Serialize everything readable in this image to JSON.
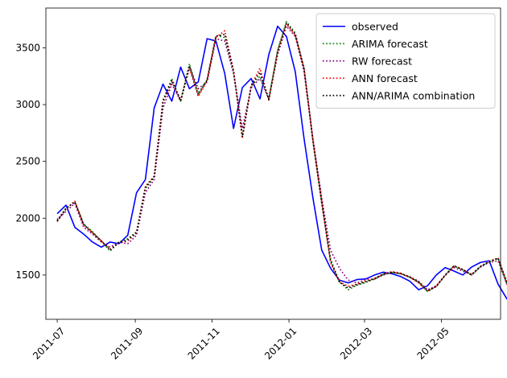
{
  "chart_data": {
    "type": "line",
    "title": "",
    "xlabel": "",
    "ylabel": "",
    "xlim": [
      "2011-06-22",
      "2012-06-17"
    ],
    "ylim": [
      1110,
      3850
    ],
    "x_ticks": [
      {
        "date": "2011-07-01",
        "label": "2011-07"
      },
      {
        "date": "2011-09-01",
        "label": "2011-09"
      },
      {
        "date": "2011-11-01",
        "label": "2011-11"
      },
      {
        "date": "2012-01-01",
        "label": "2012-01"
      },
      {
        "date": "2012-03-01",
        "label": "2012-03"
      },
      {
        "date": "2012-05-01",
        "label": "2012-05"
      }
    ],
    "y_ticks": [
      1500,
      2000,
      2500,
      3000,
      3500
    ],
    "grid": false,
    "legend_position": "top-right",
    "series": [
      {
        "name": "observed",
        "color": "#0000ff",
        "style": "solid",
        "points": [
          [
            "2011-07-01",
            2040
          ],
          [
            "2011-07-08",
            2115
          ],
          [
            "2011-07-15",
            1920
          ],
          [
            "2011-07-22",
            1860
          ],
          [
            "2011-07-29",
            1790
          ],
          [
            "2011-08-05",
            1745
          ],
          [
            "2011-08-12",
            1790
          ],
          [
            "2011-08-19",
            1775
          ],
          [
            "2011-08-26",
            1850
          ],
          [
            "2011-09-02",
            2225
          ],
          [
            "2011-09-09",
            2340
          ],
          [
            "2011-09-16",
            2970
          ],
          [
            "2011-09-23",
            3180
          ],
          [
            "2011-09-30",
            3030
          ],
          [
            "2011-10-07",
            3330
          ],
          [
            "2011-10-14",
            3140
          ],
          [
            "2011-10-21",
            3200
          ],
          [
            "2011-10-28",
            3580
          ],
          [
            "2011-11-04",
            3560
          ],
          [
            "2011-11-11",
            3275
          ],
          [
            "2011-11-18",
            2790
          ],
          [
            "2011-11-25",
            3150
          ],
          [
            "2011-12-02",
            3230
          ],
          [
            "2011-12-09",
            3050
          ],
          [
            "2011-12-16",
            3440
          ],
          [
            "2011-12-23",
            3690
          ],
          [
            "2011-12-30",
            3600
          ],
          [
            "2012-01-06",
            3290
          ],
          [
            "2012-01-13",
            2700
          ],
          [
            "2012-01-20",
            2180
          ],
          [
            "2012-01-27",
            1720
          ],
          [
            "2012-02-03",
            1560
          ],
          [
            "2012-02-10",
            1455
          ],
          [
            "2012-02-17",
            1430
          ],
          [
            "2012-02-24",
            1460
          ],
          [
            "2012-03-02",
            1465
          ],
          [
            "2012-03-09",
            1500
          ],
          [
            "2012-03-16",
            1525
          ],
          [
            "2012-03-23",
            1510
          ],
          [
            "2012-03-30",
            1485
          ],
          [
            "2012-04-06",
            1445
          ],
          [
            "2012-04-13",
            1370
          ],
          [
            "2012-04-20",
            1405
          ],
          [
            "2012-04-27",
            1500
          ],
          [
            "2012-05-04",
            1565
          ],
          [
            "2012-05-11",
            1535
          ],
          [
            "2012-05-18",
            1500
          ],
          [
            "2012-05-25",
            1570
          ],
          [
            "2012-06-01",
            1610
          ],
          [
            "2012-06-08",
            1625
          ],
          [
            "2012-06-15",
            1420
          ],
          [
            "2012-06-22",
            1290
          ],
          [
            "2012-06-29",
            1220
          ]
        ]
      },
      {
        "name": "ARIMA forecast",
        "color": "#008000",
        "style": "dotted",
        "points": [
          [
            "2011-07-01",
            1980
          ],
          [
            "2011-07-08",
            2090
          ],
          [
            "2011-07-15",
            2140
          ],
          [
            "2011-07-22",
            1950
          ],
          [
            "2011-07-29",
            1880
          ],
          [
            "2011-08-05",
            1800
          ],
          [
            "2011-08-12",
            1710
          ],
          [
            "2011-08-19",
            1790
          ],
          [
            "2011-08-26",
            1820
          ],
          [
            "2011-09-02",
            1880
          ],
          [
            "2011-09-09",
            2260
          ],
          [
            "2011-09-16",
            2360
          ],
          [
            "2011-09-23",
            3040
          ],
          [
            "2011-09-30",
            3230
          ],
          [
            "2011-10-07",
            3030
          ],
          [
            "2011-10-14",
            3360
          ],
          [
            "2011-10-21",
            3100
          ],
          [
            "2011-10-28",
            3220
          ],
          [
            "2011-11-04",
            3610
          ],
          [
            "2011-11-11",
            3590
          ],
          [
            "2011-11-18",
            3290
          ],
          [
            "2011-11-25",
            2730
          ],
          [
            "2011-12-02",
            3160
          ],
          [
            "2011-12-09",
            3250
          ],
          [
            "2011-12-16",
            3050
          ],
          [
            "2011-12-23",
            3480
          ],
          [
            "2011-12-30",
            3730
          ],
          [
            "2012-01-06",
            3630
          ],
          [
            "2012-01-13",
            3310
          ],
          [
            "2012-01-20",
            2680
          ],
          [
            "2012-01-27",
            2130
          ],
          [
            "2012-02-03",
            1640
          ],
          [
            "2012-02-10",
            1440
          ],
          [
            "2012-02-17",
            1370
          ],
          [
            "2012-02-24",
            1410
          ],
          [
            "2012-03-02",
            1435
          ],
          [
            "2012-03-09",
            1465
          ],
          [
            "2012-03-16",
            1505
          ],
          [
            "2012-03-23",
            1520
          ],
          [
            "2012-03-30",
            1510
          ],
          [
            "2012-04-06",
            1480
          ],
          [
            "2012-04-13",
            1440
          ],
          [
            "2012-04-20",
            1355
          ],
          [
            "2012-04-27",
            1400
          ],
          [
            "2012-05-04",
            1500
          ],
          [
            "2012-05-11",
            1580
          ],
          [
            "2012-05-18",
            1545
          ],
          [
            "2012-05-25",
            1500
          ],
          [
            "2012-06-01",
            1575
          ],
          [
            "2012-06-08",
            1615
          ],
          [
            "2012-06-15",
            1645
          ],
          [
            "2012-06-22",
            1420
          ],
          [
            "2012-06-29",
            1280
          ]
        ]
      },
      {
        "name": "RW forecast",
        "color": "#800080",
        "style": "dotted",
        "points": [
          [
            "2011-07-01",
            1990
          ],
          [
            "2011-07-08",
            2060
          ],
          [
            "2011-07-15",
            2130
          ],
          [
            "2011-07-22",
            1920
          ],
          [
            "2011-07-29",
            1860
          ],
          [
            "2011-08-05",
            1790
          ],
          [
            "2011-08-12",
            1745
          ],
          [
            "2011-08-19",
            1790
          ],
          [
            "2011-08-26",
            1775
          ],
          [
            "2011-09-02",
            1850
          ],
          [
            "2011-09-09",
            2225
          ],
          [
            "2011-09-16",
            2340
          ],
          [
            "2011-09-23",
            2970
          ],
          [
            "2011-09-30",
            3180
          ],
          [
            "2011-10-07",
            3030
          ],
          [
            "2011-10-14",
            3330
          ],
          [
            "2011-10-21",
            3140
          ],
          [
            "2011-10-28",
            3200
          ],
          [
            "2011-11-04",
            3580
          ],
          [
            "2011-11-11",
            3560
          ],
          [
            "2011-11-18",
            3275
          ],
          [
            "2011-11-25",
            2790
          ],
          [
            "2011-12-02",
            3150
          ],
          [
            "2011-12-09",
            3230
          ],
          [
            "2011-12-16",
            3050
          ],
          [
            "2011-12-23",
            3440
          ],
          [
            "2011-12-30",
            3690
          ],
          [
            "2012-01-06",
            3600
          ],
          [
            "2012-01-13",
            3290
          ],
          [
            "2012-01-20",
            2700
          ],
          [
            "2012-01-27",
            2180
          ],
          [
            "2012-02-03",
            1720
          ],
          [
            "2012-02-10",
            1560
          ],
          [
            "2012-02-17",
            1455
          ],
          [
            "2012-02-24",
            1430
          ],
          [
            "2012-03-02",
            1460
          ],
          [
            "2012-03-09",
            1465
          ],
          [
            "2012-03-16",
            1500
          ],
          [
            "2012-03-23",
            1525
          ],
          [
            "2012-03-30",
            1510
          ],
          [
            "2012-04-06",
            1485
          ],
          [
            "2012-04-13",
            1445
          ],
          [
            "2012-04-20",
            1370
          ],
          [
            "2012-04-27",
            1405
          ],
          [
            "2012-05-04",
            1500
          ],
          [
            "2012-05-11",
            1565
          ],
          [
            "2012-05-18",
            1535
          ],
          [
            "2012-05-25",
            1500
          ],
          [
            "2012-06-01",
            1570
          ],
          [
            "2012-06-08",
            1610
          ],
          [
            "2012-06-15",
            1625
          ],
          [
            "2012-06-22",
            1420
          ],
          [
            "2012-06-29",
            1290
          ]
        ]
      },
      {
        "name": "ANN forecast",
        "color": "#ff0000",
        "style": "dotted",
        "points": [
          [
            "2011-07-01",
            1970
          ],
          [
            "2011-07-08",
            2080
          ],
          [
            "2011-07-15",
            2150
          ],
          [
            "2011-07-22",
            1940
          ],
          [
            "2011-07-29",
            1870
          ],
          [
            "2011-08-05",
            1800
          ],
          [
            "2011-08-12",
            1730
          ],
          [
            "2011-08-19",
            1780
          ],
          [
            "2011-08-26",
            1800
          ],
          [
            "2011-09-02",
            1870
          ],
          [
            "2011-09-09",
            2280
          ],
          [
            "2011-09-16",
            2370
          ],
          [
            "2011-09-23",
            3020
          ],
          [
            "2011-09-30",
            3200
          ],
          [
            "2011-10-07",
            3040
          ],
          [
            "2011-10-14",
            3320
          ],
          [
            "2011-10-21",
            3070
          ],
          [
            "2011-10-28",
            3210
          ],
          [
            "2011-11-04",
            3590
          ],
          [
            "2011-11-11",
            3650
          ],
          [
            "2011-11-18",
            3300
          ],
          [
            "2011-11-25",
            2700
          ],
          [
            "2011-12-02",
            3170
          ],
          [
            "2011-12-09",
            3320
          ],
          [
            "2011-12-16",
            3040
          ],
          [
            "2011-12-23",
            3460
          ],
          [
            "2011-12-30",
            3710
          ],
          [
            "2012-01-06",
            3610
          ],
          [
            "2012-01-13",
            3320
          ],
          [
            "2012-01-20",
            2690
          ],
          [
            "2012-01-27",
            2150
          ],
          [
            "2012-02-03",
            1610
          ],
          [
            "2012-02-10",
            1440
          ],
          [
            "2012-02-17",
            1400
          ],
          [
            "2012-02-24",
            1420
          ],
          [
            "2012-03-02",
            1450
          ],
          [
            "2012-03-09",
            1470
          ],
          [
            "2012-03-16",
            1510
          ],
          [
            "2012-03-23",
            1530
          ],
          [
            "2012-03-30",
            1515
          ],
          [
            "2012-04-06",
            1480
          ],
          [
            "2012-04-13",
            1430
          ],
          [
            "2012-04-20",
            1360
          ],
          [
            "2012-04-27",
            1400
          ],
          [
            "2012-05-04",
            1495
          ],
          [
            "2012-05-11",
            1580
          ],
          [
            "2012-05-18",
            1550
          ],
          [
            "2012-05-25",
            1505
          ],
          [
            "2012-06-01",
            1575
          ],
          [
            "2012-06-08",
            1620
          ],
          [
            "2012-06-15",
            1650
          ],
          [
            "2012-06-22",
            1440
          ],
          [
            "2012-06-29",
            1300
          ]
        ]
      },
      {
        "name": "ANN/ARIMA combination",
        "color": "#000000",
        "style": "dotted",
        "points": [
          [
            "2011-07-01",
            1975
          ],
          [
            "2011-07-08",
            2085
          ],
          [
            "2011-07-15",
            2145
          ],
          [
            "2011-07-22",
            1945
          ],
          [
            "2011-07-29",
            1875
          ],
          [
            "2011-08-05",
            1800
          ],
          [
            "2011-08-12",
            1720
          ],
          [
            "2011-08-19",
            1785
          ],
          [
            "2011-08-26",
            1810
          ],
          [
            "2011-09-02",
            1875
          ],
          [
            "2011-09-09",
            2270
          ],
          [
            "2011-09-16",
            2365
          ],
          [
            "2011-09-23",
            3030
          ],
          [
            "2011-09-30",
            3215
          ],
          [
            "2011-10-07",
            3035
          ],
          [
            "2011-10-14",
            3340
          ],
          [
            "2011-10-21",
            3085
          ],
          [
            "2011-10-28",
            3215
          ],
          [
            "2011-11-04",
            3600
          ],
          [
            "2011-11-11",
            3620
          ],
          [
            "2011-11-18",
            3295
          ],
          [
            "2011-11-25",
            2715
          ],
          [
            "2011-12-02",
            3165
          ],
          [
            "2011-12-09",
            3285
          ],
          [
            "2011-12-16",
            3045
          ],
          [
            "2011-12-23",
            3470
          ],
          [
            "2011-12-30",
            3720
          ],
          [
            "2012-01-06",
            3620
          ],
          [
            "2012-01-13",
            3315
          ],
          [
            "2012-01-20",
            2685
          ],
          [
            "2012-01-27",
            2140
          ],
          [
            "2012-02-03",
            1625
          ],
          [
            "2012-02-10",
            1440
          ],
          [
            "2012-02-17",
            1385
          ],
          [
            "2012-02-24",
            1415
          ],
          [
            "2012-03-02",
            1440
          ],
          [
            "2012-03-09",
            1468
          ],
          [
            "2012-03-16",
            1508
          ],
          [
            "2012-03-23",
            1525
          ],
          [
            "2012-03-30",
            1512
          ],
          [
            "2012-04-06",
            1480
          ],
          [
            "2012-04-13",
            1435
          ],
          [
            "2012-04-20",
            1358
          ],
          [
            "2012-04-27",
            1400
          ],
          [
            "2012-05-04",
            1498
          ],
          [
            "2012-05-11",
            1580
          ],
          [
            "2012-05-18",
            1548
          ],
          [
            "2012-05-25",
            1502
          ],
          [
            "2012-06-01",
            1575
          ],
          [
            "2012-06-08",
            1618
          ],
          [
            "2012-06-15",
            1648
          ],
          [
            "2012-06-22",
            1430
          ],
          [
            "2012-06-29",
            1290
          ]
        ]
      }
    ]
  }
}
